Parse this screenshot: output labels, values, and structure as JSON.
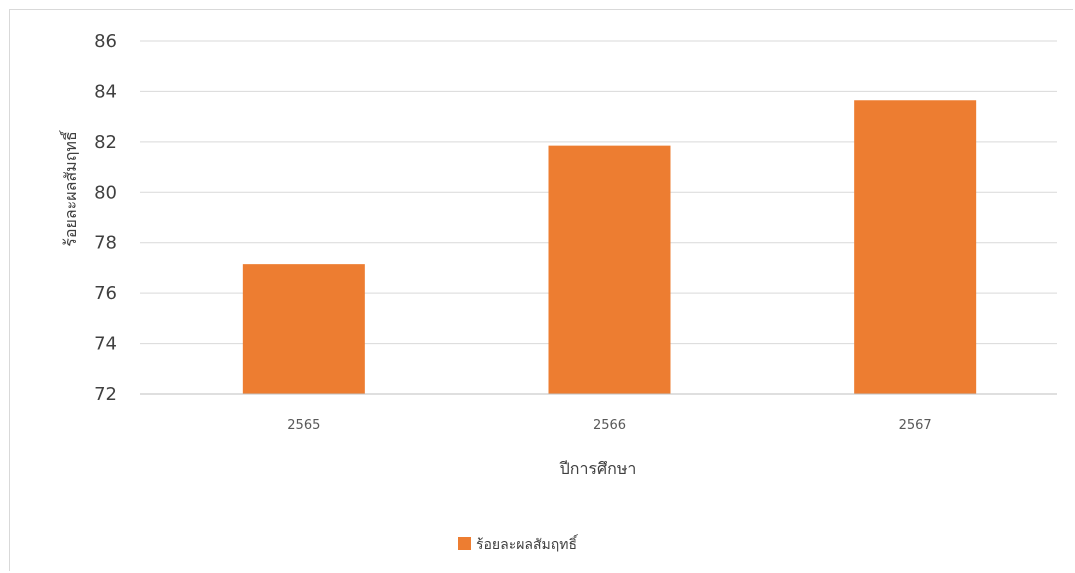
{
  "chart_data": {
    "type": "bar",
    "categories": [
      "2565",
      "2566",
      "2567"
    ],
    "series": [
      {
        "name": "ร้อยละผลสัมฤทธิ์",
        "values": [
          77.15,
          81.85,
          83.65
        ],
        "color": "#ED7D31"
      }
    ],
    "title": "",
    "xlabel": "ปีการศึกษา",
    "ylabel": "ร้อยละผลสัมฤทธิ์",
    "ylim": [
      72,
      86
    ],
    "yticks": [
      72,
      74,
      76,
      78,
      80,
      82,
      84,
      86
    ],
    "grid": true,
    "legend": "bottom-center"
  }
}
